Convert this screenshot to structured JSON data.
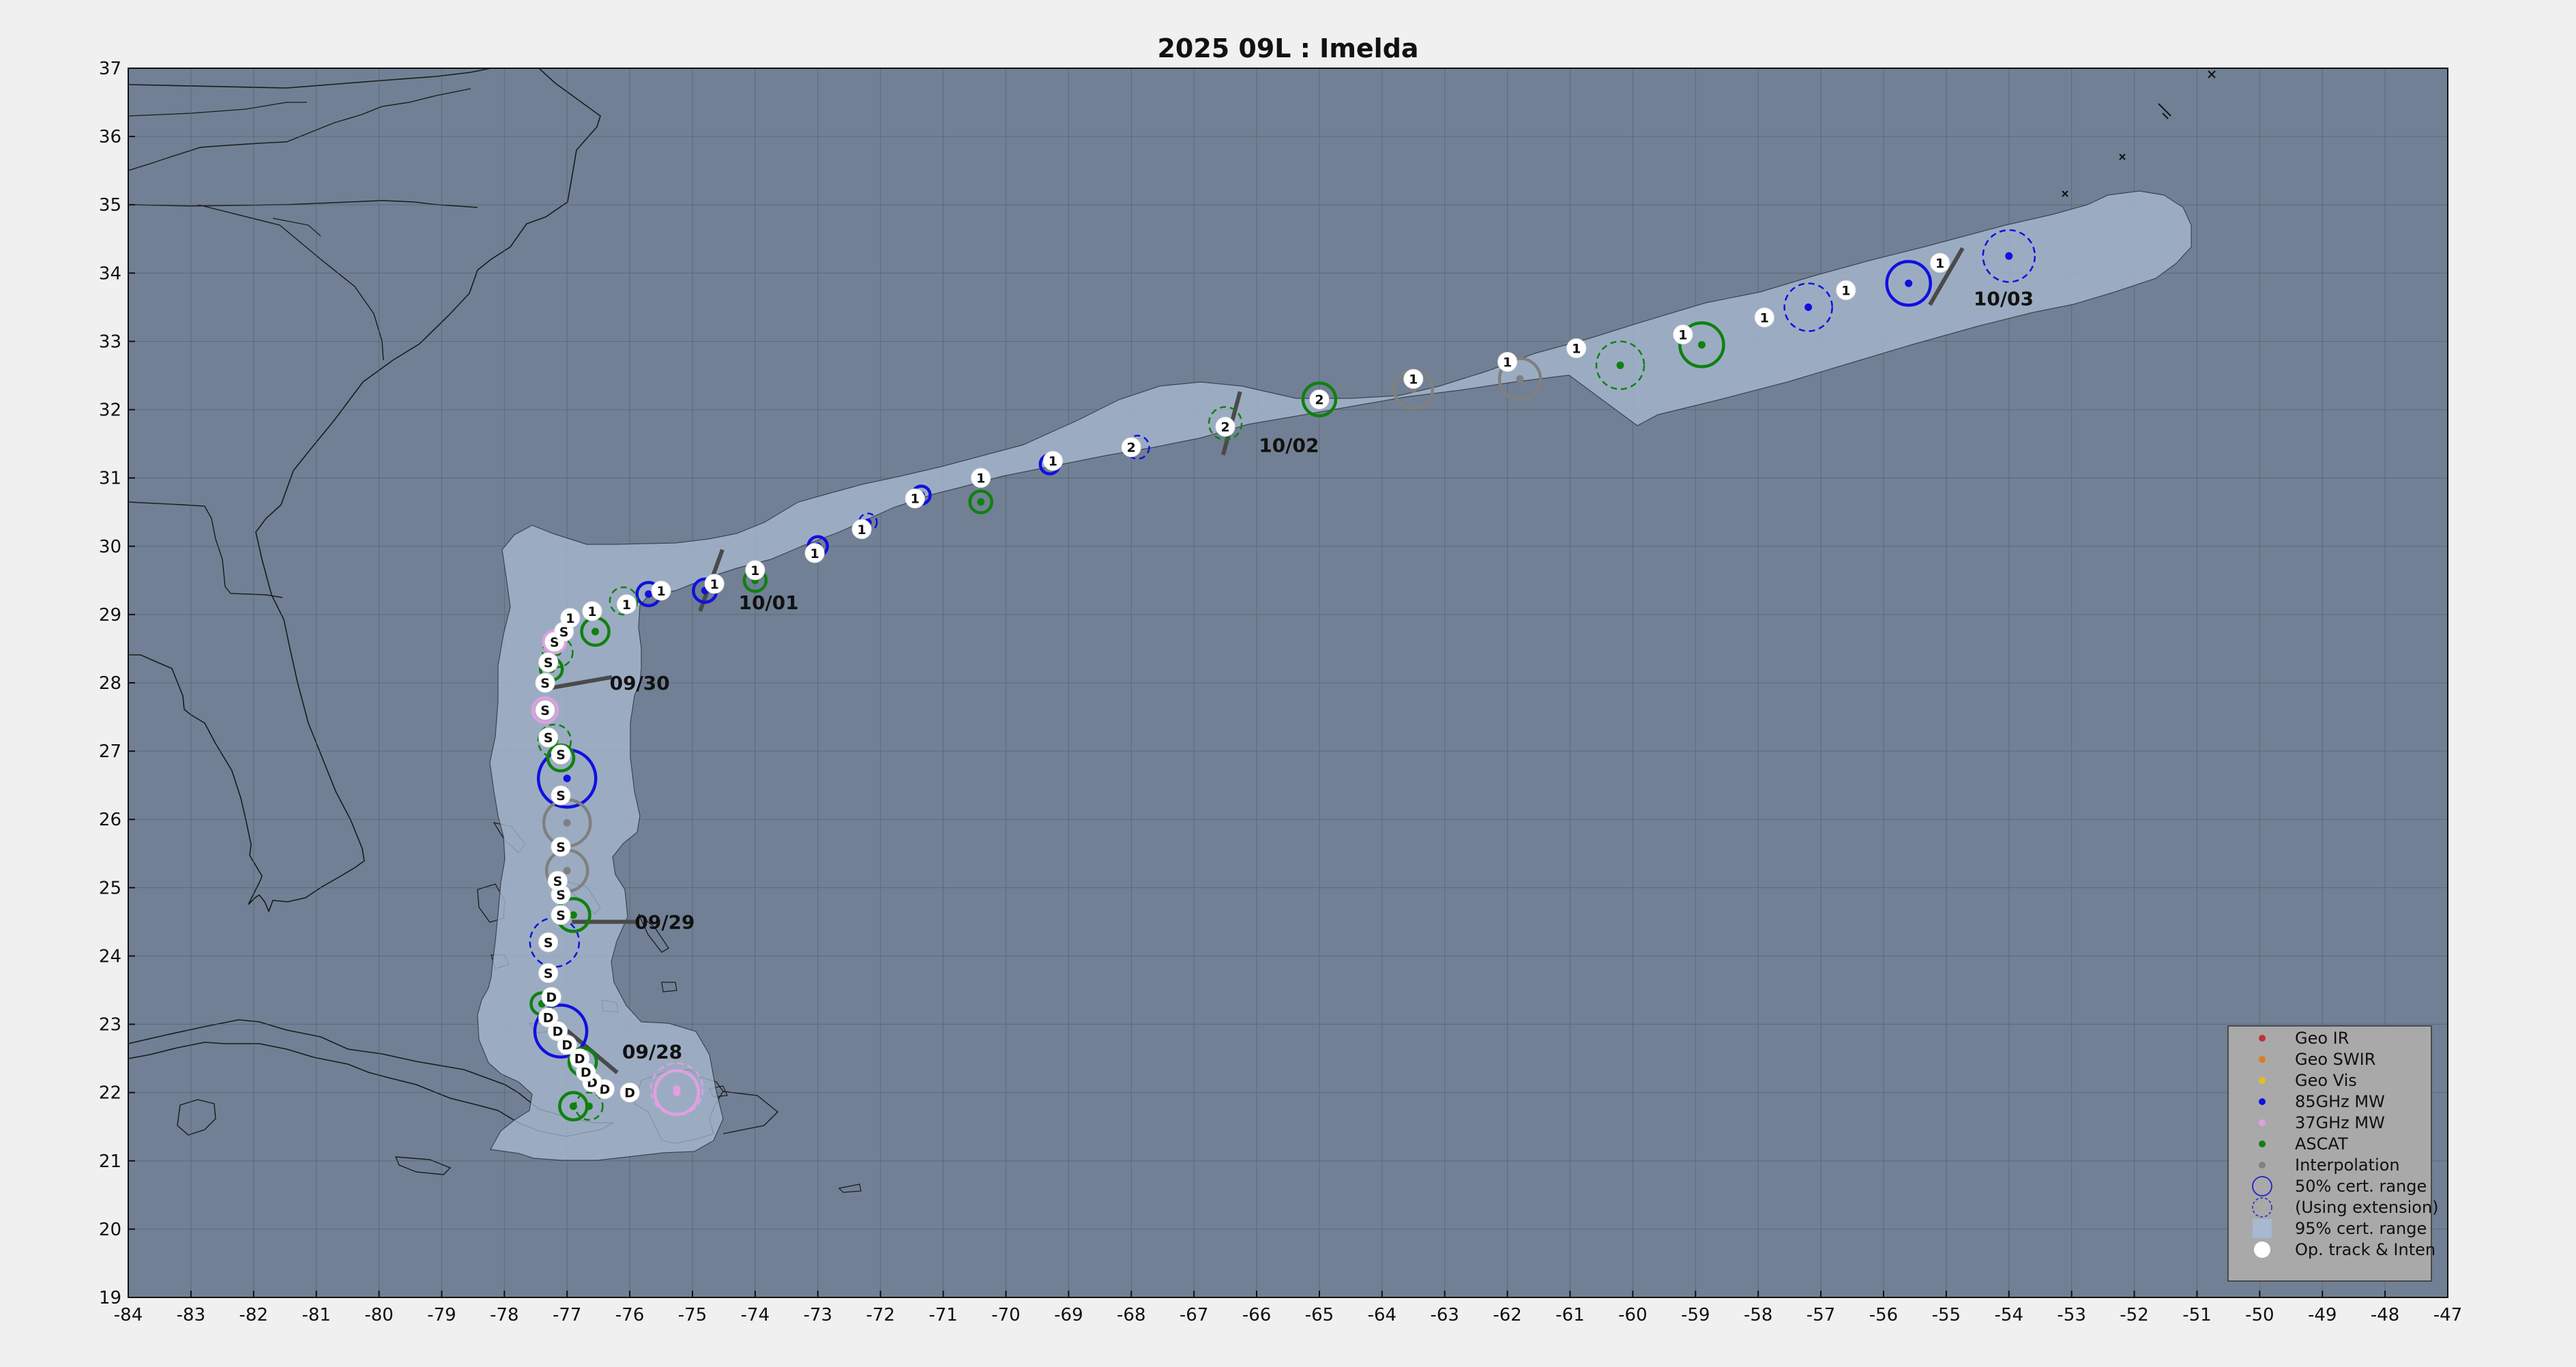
{
  "title": "2025  09L :  Imelda",
  "axes": {
    "lon_range": [
      -84,
      -47
    ],
    "lat_range": [
      19,
      37
    ],
    "x_ticks": [
      "-84",
      "-83",
      "-82",
      "-81",
      "-80",
      "-79",
      "-78",
      "-77",
      "-76",
      "-75",
      "-74",
      "-73",
      "-72",
      "-71",
      "-70",
      "-69",
      "-68",
      "-67",
      "-66",
      "-65",
      "-64",
      "-63",
      "-62",
      "-61",
      "-60",
      "-59",
      "-58",
      "-57",
      "-56",
      "-55",
      "-54",
      "-53",
      "-52",
      "-51",
      "-50",
      "-49",
      "-48",
      "-47"
    ],
    "y_ticks": [
      "19",
      "20",
      "21",
      "22",
      "23",
      "24",
      "25",
      "26",
      "27",
      "28",
      "29",
      "30",
      "31",
      "32",
      "33",
      "34",
      "35",
      "36",
      "37"
    ],
    "grid": true
  },
  "colors": {
    "figure_bg": "#f0f0f0",
    "ocean": "#718094",
    "cone": "#a7b8d0",
    "coast": "#1a1a1a",
    "geo_ir": "#c0303a",
    "geo_swir": "#e07a20",
    "geo_vis": "#e0c020",
    "mw85": "#1010e0",
    "mw37": "#e0a0e0",
    "ascat": "#108010",
    "interp": "#808080"
  },
  "legend": {
    "placement": "bottom-right",
    "items": [
      {
        "label": "Geo IR",
        "marker": "dot",
        "color": "#c0303a"
      },
      {
        "label": "Geo SWIR",
        "marker": "dot",
        "color": "#e07a20"
      },
      {
        "label": "Geo Vis",
        "marker": "dot",
        "color": "#e0c020"
      },
      {
        "label": "85GHz MW",
        "marker": "dot",
        "color": "#1010e0"
      },
      {
        "label": "37GHz MW",
        "marker": "dot",
        "color": "#e0a0e0"
      },
      {
        "label": "ASCAT",
        "marker": "dot",
        "color": "#108010"
      },
      {
        "label": "Interpolation",
        "marker": "dot",
        "color": "#808080"
      },
      {
        "label": "50% cert. range",
        "marker": "circle",
        "color": "#2020d0"
      },
      {
        "label": "(Using extension)",
        "marker": "circle-dash",
        "color": "#2020d0"
      },
      {
        "label": "95% cert. range",
        "marker": "square",
        "color": "#a7b8d0"
      },
      {
        "label": "Op. track & Inten",
        "marker": "white-dot",
        "color": "#ffffff"
      }
    ]
  },
  "date_labels": [
    {
      "text": "09/28",
      "lon": -76.6,
      "lat": 22.6,
      "bar_angle": -40
    },
    {
      "text": "09/29",
      "lon": -76.4,
      "lat": 24.5,
      "bar_angle": 0
    },
    {
      "text": "09/30",
      "lon": -76.8,
      "lat": 28.0,
      "bar_angle": 10
    },
    {
      "text": "10/01",
      "lon": -74.7,
      "lat": 29.5,
      "bar_angle": 70
    },
    {
      "text": "10/02",
      "lon": -66.4,
      "lat": 31.8,
      "bar_angle": 75
    },
    {
      "text": "10/03",
      "lon": -55.0,
      "lat": 33.95,
      "bar_angle": 60
    }
  ],
  "chart_data": {
    "type": "scatter",
    "title": "2025  09L :  Imelda",
    "xlim": [
      -84,
      -47
    ],
    "ylim": [
      19,
      37
    ],
    "series": [
      {
        "name": "Op. track & Inten",
        "points": [
          {
            "x": -76.0,
            "y": 22.0,
            "v": "D"
          },
          {
            "x": -76.4,
            "y": 22.05,
            "v": "D"
          },
          {
            "x": -76.6,
            "y": 22.15,
            "v": "D"
          },
          {
            "x": -76.7,
            "y": 22.3,
            "v": "D"
          },
          {
            "x": -76.8,
            "y": 22.5,
            "v": "D"
          },
          {
            "x": -77.0,
            "y": 22.7,
            "v": "D"
          },
          {
            "x": -77.15,
            "y": 22.9,
            "v": "D"
          },
          {
            "x": -77.3,
            "y": 23.1,
            "v": "D"
          },
          {
            "x": -77.25,
            "y": 23.4,
            "v": "D"
          },
          {
            "x": -77.3,
            "y": 23.75,
            "v": "S"
          },
          {
            "x": -77.3,
            "y": 24.2,
            "v": "S"
          },
          {
            "x": -77.1,
            "y": 24.6,
            "v": "S"
          },
          {
            "x": -77.1,
            "y": 24.9,
            "v": "S"
          },
          {
            "x": -77.15,
            "y": 25.1,
            "v": "S"
          },
          {
            "x": -77.1,
            "y": 25.6,
            "v": "S"
          },
          {
            "x": -77.1,
            "y": 26.35,
            "v": "S"
          },
          {
            "x": -77.1,
            "y": 26.95,
            "v": "S"
          },
          {
            "x": -77.3,
            "y": 27.2,
            "v": "S"
          },
          {
            "x": -77.35,
            "y": 27.6,
            "v": "S"
          },
          {
            "x": -77.35,
            "y": 28.0,
            "v": "S"
          },
          {
            "x": -77.3,
            "y": 28.3,
            "v": "S"
          },
          {
            "x": -77.2,
            "y": 28.6,
            "v": "S"
          },
          {
            "x": -77.05,
            "y": 28.75,
            "v": "S"
          },
          {
            "x": -76.95,
            "y": 28.95,
            "v": "1"
          },
          {
            "x": -76.6,
            "y": 29.05,
            "v": "1"
          },
          {
            "x": -76.05,
            "y": 29.15,
            "v": "1"
          },
          {
            "x": -75.5,
            "y": 29.35,
            "v": "1"
          },
          {
            "x": -74.65,
            "y": 29.45,
            "v": "1"
          },
          {
            "x": -74.0,
            "y": 29.65,
            "v": "1"
          },
          {
            "x": -73.05,
            "y": 29.9,
            "v": "1"
          },
          {
            "x": -72.3,
            "y": 30.25,
            "v": "1"
          },
          {
            "x": -71.45,
            "y": 30.7,
            "v": "1"
          },
          {
            "x": -70.4,
            "y": 31.0,
            "v": "1"
          },
          {
            "x": -69.25,
            "y": 31.25,
            "v": "1"
          },
          {
            "x": -68.0,
            "y": 31.45,
            "v": "2"
          },
          {
            "x": -66.5,
            "y": 31.75,
            "v": "2"
          },
          {
            "x": -65.0,
            "y": 32.15,
            "v": "2"
          },
          {
            "x": -63.5,
            "y": 32.45,
            "v": "1"
          },
          {
            "x": -62.0,
            "y": 32.7,
            "v": "1"
          },
          {
            "x": -60.9,
            "y": 32.9,
            "v": "1"
          },
          {
            "x": -59.2,
            "y": 33.1,
            "v": "1"
          },
          {
            "x": -57.9,
            "y": 33.35,
            "v": "1"
          },
          {
            "x": -56.6,
            "y": 33.75,
            "v": "1"
          },
          {
            "x": -55.1,
            "y": 34.15,
            "v": "1"
          }
        ]
      },
      {
        "name": "85GHz MW",
        "points": [
          {
            "x": -77.1,
            "y": 22.9,
            "r": 0.38
          },
          {
            "x": -77.2,
            "y": 24.2,
            "r": 0.36,
            "ext": true
          },
          {
            "x": -77.0,
            "y": 26.6,
            "r": 0.42
          },
          {
            "x": -75.7,
            "y": 29.3,
            "r": 0.17
          },
          {
            "x": -74.8,
            "y": 29.35,
            "r": 0.17
          },
          {
            "x": -73.0,
            "y": 30.0,
            "r": 0.14
          },
          {
            "x": -72.2,
            "y": 30.35,
            "r": 0.13,
            "ext": true
          },
          {
            "x": -71.35,
            "y": 30.75,
            "r": 0.13
          },
          {
            "x": -69.3,
            "y": 31.2,
            "r": 0.14
          },
          {
            "x": -67.9,
            "y": 31.45,
            "r": 0.17,
            "ext": true
          },
          {
            "x": -57.2,
            "y": 33.5,
            "r": 0.35,
            "ext": true
          },
          {
            "x": -55.6,
            "y": 33.85,
            "r": 0.32
          },
          {
            "x": -54.0,
            "y": 34.25,
            "r": 0.38,
            "ext": true
          }
        ]
      },
      {
        "name": "ASCAT",
        "points": [
          {
            "x": -76.9,
            "y": 21.8,
            "r": 0.2
          },
          {
            "x": -76.65,
            "y": 21.8,
            "r": 0.2,
            "ext": true
          },
          {
            "x": -76.75,
            "y": 22.45,
            "r": 0.2
          },
          {
            "x": -77.4,
            "y": 23.3,
            "r": 0.16
          },
          {
            "x": -76.9,
            "y": 24.6,
            "r": 0.24
          },
          {
            "x": -77.1,
            "y": 26.9,
            "r": 0.19
          },
          {
            "x": -77.2,
            "y": 27.15,
            "r": 0.24,
            "ext": true
          },
          {
            "x": -77.25,
            "y": 28.2,
            "r": 0.16
          },
          {
            "x": -77.15,
            "y": 28.45,
            "r": 0.22,
            "ext": true
          },
          {
            "x": -76.55,
            "y": 28.75,
            "r": 0.2
          },
          {
            "x": -76.1,
            "y": 29.2,
            "r": 0.2,
            "ext": true
          },
          {
            "x": -74.0,
            "y": 29.5,
            "r": 0.16
          },
          {
            "x": -70.4,
            "y": 30.65,
            "r": 0.16
          },
          {
            "x": -66.5,
            "y": 31.8,
            "r": 0.24,
            "ext": true
          },
          {
            "x": -65.0,
            "y": 32.15,
            "r": 0.24
          },
          {
            "x": -60.2,
            "y": 32.65,
            "r": 0.35,
            "ext": true
          },
          {
            "x": -58.9,
            "y": 32.95,
            "r": 0.32
          }
        ]
      },
      {
        "name": "37GHz MW",
        "points": [
          {
            "x": -75.25,
            "y": 22.0,
            "r": 0.32
          },
          {
            "x": -75.25,
            "y": 22.05,
            "r": 0.38,
            "ext": true
          },
          {
            "x": -77.35,
            "y": 27.6,
            "r": 0.18
          },
          {
            "x": -77.2,
            "y": 28.6,
            "r": 0.16
          }
        ]
      },
      {
        "name": "Interpolation",
        "points": [
          {
            "x": -77.0,
            "y": 25.95,
            "r": 0.34
          },
          {
            "x": -77.0,
            "y": 25.25,
            "r": 0.3
          },
          {
            "x": -63.5,
            "y": 32.3,
            "r": 0.28
          },
          {
            "x": -61.8,
            "y": 32.45,
            "r": 0.3
          }
        ]
      }
    ]
  }
}
